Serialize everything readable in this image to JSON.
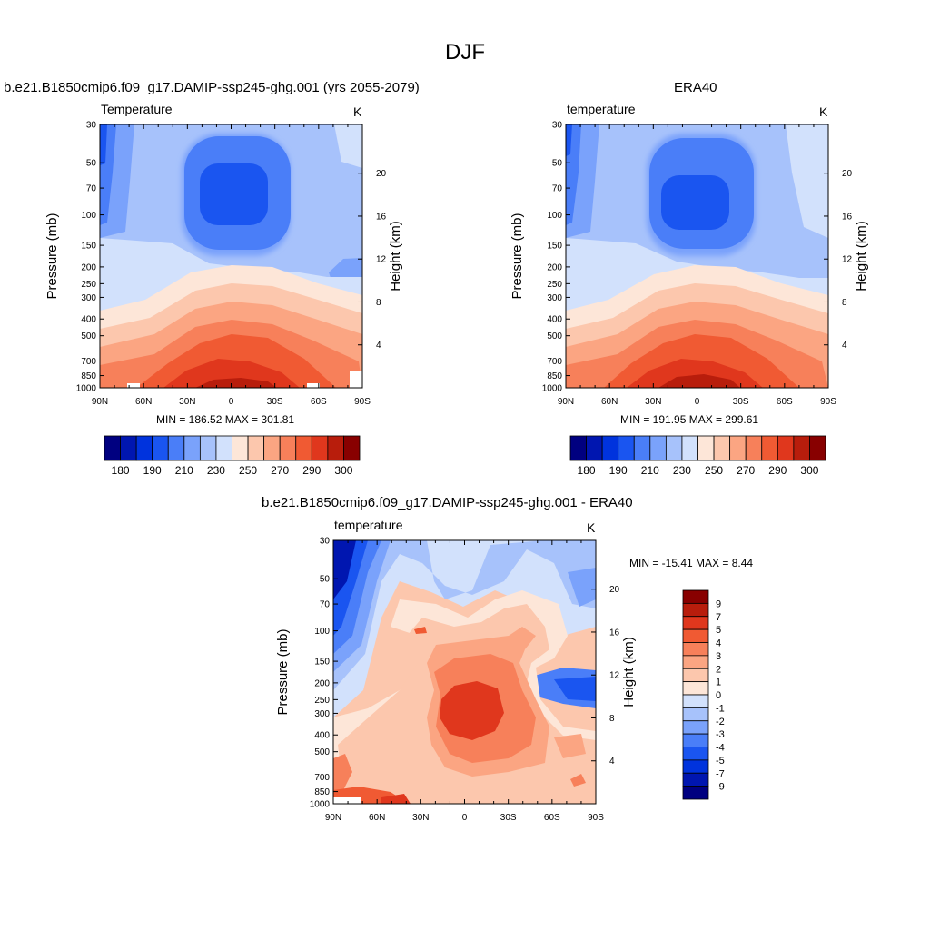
{
  "page": {
    "title": "DJF"
  },
  "panels": {
    "model": {
      "title": "b.e21.B1850cmip6.f09_g17.DAMIP-ssp245-ghg.001 (yrs 2055-2079)",
      "subtitle_left": "Temperature",
      "subtitle_right": "K",
      "minmax": "MIN = 186.52  MAX = 301.81",
      "ylabel": "Pressure (mb)",
      "ylabel_right": "Height (km)"
    },
    "era": {
      "title": "ERA40",
      "subtitle_left": "temperature",
      "subtitle_right": "K",
      "minmax": "MIN = 191.95  MAX = 299.61",
      "ylabel": "Pressure (mb)",
      "ylabel_right": "Height (km)"
    },
    "diff": {
      "title": "b.e21.B1850cmip6.f09_g17.DAMIP-ssp245-ghg.001 - ERA40",
      "subtitle_left": "temperature",
      "subtitle_right": "K",
      "minmax": "MIN = -15.41  MAX =   8.44",
      "ylabel": "Pressure (mb)",
      "ylabel_right": "Height (km)"
    }
  },
  "chart_data": [
    {
      "type": "heatmap",
      "id": "model",
      "title": "b.e21.B1850cmip6.f09_g17.DAMIP-ssp245-ghg.001 (yrs 2055-2079)",
      "x_ticks": [
        "90N",
        "60N",
        "30N",
        "0",
        "30S",
        "60S",
        "90S"
      ],
      "x_values": [
        90,
        60,
        30,
        0,
        -30,
        -60,
        -90
      ],
      "y_ticks": [
        "30",
        "50",
        "70",
        "100",
        "150",
        "200",
        "250",
        "300",
        "400",
        "500",
        "700",
        "850",
        "1000"
      ],
      "y_values": [
        30,
        50,
        70,
        100,
        150,
        200,
        250,
        300,
        400,
        500,
        700,
        850,
        1000
      ],
      "y2_ticks": [
        "4",
        "8",
        "12",
        "16",
        "20"
      ],
      "y2_values": [
        4,
        8,
        12,
        16,
        20
      ],
      "colorbar_labels": [
        "180",
        "190",
        "210",
        "230",
        "250",
        "270",
        "290",
        "300"
      ],
      "colorbar_levels": 16,
      "colors": [
        "#000080",
        "#0016b0",
        "#0033dd",
        "#1a55f0",
        "#4a7ef8",
        "#7aa2fb",
        "#a7c2fb",
        "#d2e1fc",
        "#fde6d8",
        "#fcc7ad",
        "#fba582",
        "#f7805a",
        "#f05a33",
        "#e0371d",
        "#b81d0c",
        "#880000"
      ],
      "min": 186.52,
      "max": 301.81
    },
    {
      "type": "heatmap",
      "id": "era",
      "title": "ERA40",
      "x_ticks": [
        "90N",
        "60N",
        "30N",
        "0",
        "30S",
        "60S",
        "90S"
      ],
      "y_ticks": [
        "30",
        "50",
        "70",
        "100",
        "150",
        "200",
        "250",
        "300",
        "400",
        "500",
        "700",
        "850",
        "1000"
      ],
      "y2_ticks": [
        "4",
        "8",
        "12",
        "16",
        "20"
      ],
      "colorbar_labels": [
        "180",
        "190",
        "210",
        "230",
        "250",
        "270",
        "290",
        "300"
      ],
      "min": 191.95,
      "max": 299.61
    },
    {
      "type": "heatmap",
      "id": "diff",
      "title": "b.e21.B1850cmip6.f09_g17.DAMIP-ssp245-ghg.001 - ERA40",
      "x_ticks": [
        "90N",
        "60N",
        "30N",
        "0",
        "30S",
        "60S",
        "90S"
      ],
      "y_ticks": [
        "30",
        "50",
        "70",
        "100",
        "150",
        "200",
        "250",
        "300",
        "400",
        "500",
        "700",
        "850",
        "1000"
      ],
      "y2_ticks": [
        "4",
        "8",
        "12",
        "16",
        "20"
      ],
      "colorbar_labels": [
        "9",
        "7",
        "5",
        "4",
        "3",
        "2",
        "1",
        "0",
        "-1",
        "-2",
        "-3",
        "-4",
        "-5",
        "-7",
        "-9"
      ],
      "min": -15.41,
      "max": 8.44
    }
  ]
}
